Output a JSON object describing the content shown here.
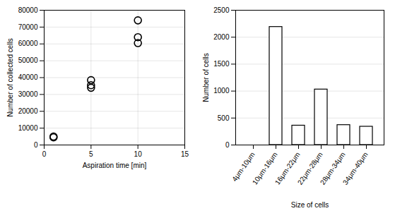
{
  "chart_data": [
    {
      "type": "scatter",
      "x_label": "Aspiration time [min]",
      "y_label": "Number of collected cells",
      "x": [
        1,
        1,
        5,
        5,
        5,
        10,
        10,
        10
      ],
      "values": [
        4500,
        5000,
        34000,
        35500,
        38500,
        60500,
        64000,
        74000
      ],
      "color": "#000000",
      "marker": "open_circle",
      "xlim": [
        0,
        15
      ],
      "xticks": [
        0,
        5,
        10,
        15
      ],
      "ylim": [
        0,
        80000
      ],
      "yticks": [
        0,
        10000,
        20000,
        30000,
        40000,
        50000,
        60000,
        70000,
        80000
      ],
      "grid": true
    },
    {
      "type": "bar",
      "x_label": "Size of cells",
      "y_label": "Number of cells",
      "categories": [
        "4μm-10μm",
        "10μm-16μm",
        "16μm-22μm",
        "22μm-28μm",
        "28μm-34μm",
        "34μm-40μm"
      ],
      "values": [
        0,
        2190,
        360,
        1030,
        370,
        340
      ],
      "color": "#ffffff",
      "ylim": [
        0,
        2500
      ],
      "yticks": [
        0,
        500,
        1000,
        1500,
        2000,
        2500
      ],
      "grid": "y"
    }
  ]
}
